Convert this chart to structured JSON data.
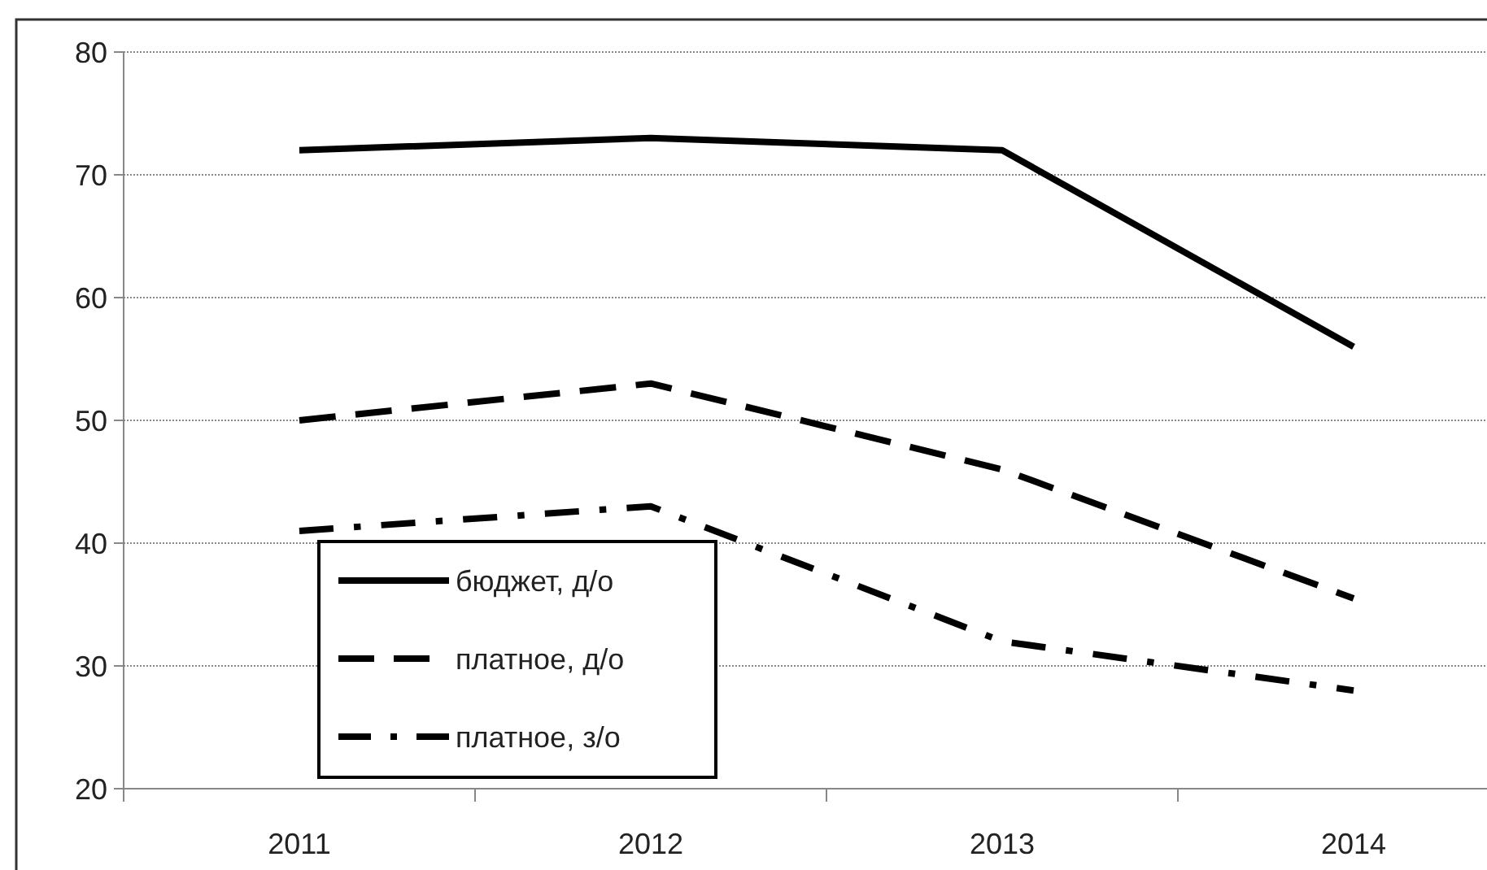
{
  "chart_data": {
    "type": "line",
    "categories": [
      "2011",
      "2012",
      "2013",
      "2014"
    ],
    "series": [
      {
        "name": "бюджет, д/о",
        "color": "#000000",
        "values": [
          72,
          73,
          72,
          56
        ],
        "line_style": "solid"
      },
      {
        "name": "платное, д/о",
        "color": "#000000",
        "values": [
          50,
          53,
          46,
          35.5
        ],
        "line_style": "dashed"
      },
      {
        "name": "платное, з/о",
        "color": "#000000",
        "values": [
          41,
          43,
          32,
          28
        ],
        "line_style": "dashdot"
      }
    ],
    "ylim": [
      20,
      80
    ],
    "yticks": [
      20,
      30,
      40,
      50,
      60,
      70,
      80
    ],
    "grid": "y",
    "legend": "bottom left"
  }
}
